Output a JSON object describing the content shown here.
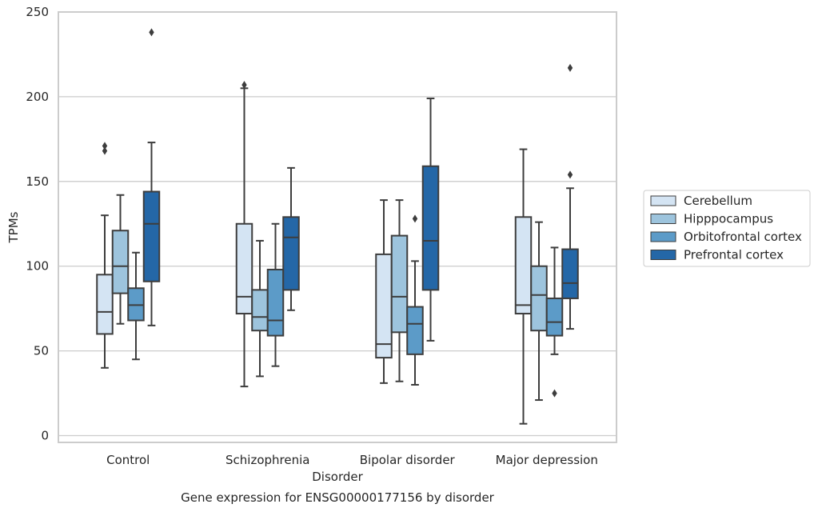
{
  "chart_data": {
    "type": "box",
    "title": "",
    "caption": "Gene expression for ENSG00000177156 by disorder",
    "xlabel": "Disorder",
    "ylabel": "TPMs",
    "ylim": [
      -4,
      250
    ],
    "yticks": [
      0,
      50,
      100,
      150,
      200,
      250
    ],
    "grid": "horizontal",
    "legend_position": "right",
    "categories": [
      "Control",
      "Schizophrenia",
      "Bipolar disorder",
      "Major depression"
    ],
    "series": [
      {
        "name": "Cerebellum",
        "color": "#d4e4f3",
        "boxes": [
          {
            "whisker_low": 40,
            "q1": 60,
            "median": 73,
            "q3": 95,
            "whisker_high": 130,
            "outliers": [
              168,
              171
            ]
          },
          {
            "whisker_low": 29,
            "q1": 72,
            "median": 82,
            "q3": 125,
            "whisker_high": 205,
            "outliers": [
              207
            ]
          },
          {
            "whisker_low": 31,
            "q1": 46,
            "median": 54,
            "q3": 107,
            "whisker_high": 139,
            "outliers": []
          },
          {
            "whisker_low": 7,
            "q1": 72,
            "median": 77,
            "q3": 129,
            "whisker_high": 169,
            "outliers": []
          }
        ]
      },
      {
        "name": "Hipppocampus",
        "color": "#9dc4dd",
        "boxes": [
          {
            "whisker_low": 66,
            "q1": 84,
            "median": 100,
            "q3": 121,
            "whisker_high": 142,
            "outliers": []
          },
          {
            "whisker_low": 35,
            "q1": 62,
            "median": 70,
            "q3": 86,
            "whisker_high": 115,
            "outliers": []
          },
          {
            "whisker_low": 32,
            "q1": 61,
            "median": 82,
            "q3": 118,
            "whisker_high": 139,
            "outliers": []
          },
          {
            "whisker_low": 21,
            "q1": 62,
            "median": 83,
            "q3": 100,
            "whisker_high": 126,
            "outliers": []
          }
        ]
      },
      {
        "name": "Orbitofrontal cortex",
        "color": "#5c9bc8",
        "boxes": [
          {
            "whisker_low": 45,
            "q1": 68,
            "median": 77,
            "q3": 87,
            "whisker_high": 108,
            "outliers": []
          },
          {
            "whisker_low": 41,
            "q1": 59,
            "median": 68,
            "q3": 98,
            "whisker_high": 125,
            "outliers": []
          },
          {
            "whisker_low": 30,
            "q1": 48,
            "median": 66,
            "q3": 76,
            "whisker_high": 103,
            "outliers": [
              128
            ]
          },
          {
            "whisker_low": 48,
            "q1": 59,
            "median": 67,
            "q3": 81,
            "whisker_high": 111,
            "outliers": [
              25
            ]
          }
        ]
      },
      {
        "name": "Prefrontal cortex",
        "color": "#2467a7",
        "boxes": [
          {
            "whisker_low": 65,
            "q1": 91,
            "median": 125,
            "q3": 144,
            "whisker_high": 173,
            "outliers": [
              238
            ]
          },
          {
            "whisker_low": 74,
            "q1": 86,
            "median": 117,
            "q3": 129,
            "whisker_high": 158,
            "outliers": []
          },
          {
            "whisker_low": 56,
            "q1": 86,
            "median": 115,
            "q3": 159,
            "whisker_high": 199,
            "outliers": []
          },
          {
            "whisker_low": 63,
            "q1": 81,
            "median": 90,
            "q3": 110,
            "whisker_high": 146,
            "outliers": [
              154,
              217
            ]
          }
        ]
      }
    ]
  }
}
